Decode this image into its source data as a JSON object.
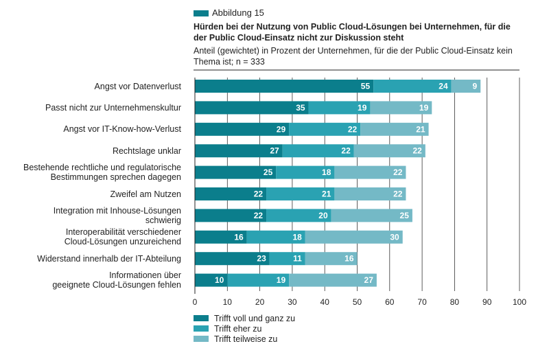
{
  "header": {
    "figure_label": "Abbildung 15",
    "title": "Hürden bei der Nutzung von Public Cloud-Lösungen bei Unternehmen, für die der Public Cloud-Einsatz nicht zur Diskussion steht",
    "subtitle": "Anteil (gewichtet) in Prozent der Unternehmen, für die der Public Cloud-Einsatz kein Thema ist; n = 333"
  },
  "colors": {
    "series_1": "#0b7e8c",
    "series_2": "#2aa2b2",
    "series_3": "#74b9c6",
    "badge": "#0b7e8c",
    "axis": "#222222"
  },
  "chart_data": {
    "type": "bar",
    "orientation": "horizontal",
    "stacked": true,
    "categories": [
      "Angst vor Datenverlust",
      "Passt nicht zur Unternehmenskultur",
      "Angst vor IT-Know-how-Verlust",
      "Rechtslage unklar",
      "Bestehende rechtliche und regulatorische Bestimmungen sprechen dagegen",
      "Zweifel am Nutzen",
      "Integration mit Inhouse-Lösungen schwierig",
      "Interoperabilität verschiedener Cloud-Lösungen unzureichend",
      "Widerstand innerhalb der IT-Abteilung",
      "Informationen über geeignete Cloud-Lösungen fehlen"
    ],
    "category_lines": [
      [
        "Angst vor Datenverlust"
      ],
      [
        "Passt nicht zur Unternehmenskultur"
      ],
      [
        "Angst vor IT-Know-how-Verlust"
      ],
      [
        "Rechtslage unklar"
      ],
      [
        "Bestehende rechtliche und regulatorische",
        "Bestimmungen sprechen dagegen"
      ],
      [
        "Zweifel am Nutzen"
      ],
      [
        "Integration mit Inhouse-Lösungen",
        "schwierig"
      ],
      [
        "Interoperabilität verschiedener",
        "Cloud-Lösungen unzureichend"
      ],
      [
        "Widerstand innerhalb der IT-Abteilung"
      ],
      [
        "Informationen über",
        "geeignete Cloud-Lösungen fehlen"
      ]
    ],
    "series": [
      {
        "name": "Trifft voll und ganz zu",
        "values": [
          55,
          35,
          29,
          27,
          25,
          22,
          22,
          16,
          23,
          10
        ]
      },
      {
        "name": "Trifft eher zu",
        "values": [
          24,
          19,
          22,
          22,
          18,
          21,
          20,
          18,
          11,
          19
        ]
      },
      {
        "name": "Trifft teilweise zu",
        "values": [
          9,
          19,
          21,
          22,
          22,
          22,
          25,
          30,
          16,
          27
        ]
      }
    ],
    "xlim": [
      0,
      100
    ],
    "xticks": [
      0,
      10,
      20,
      30,
      40,
      50,
      60,
      70,
      80,
      90,
      100
    ],
    "grid": true,
    "legend_position": "bottom-left"
  }
}
